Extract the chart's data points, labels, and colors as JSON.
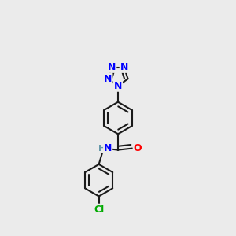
{
  "background_color": "#ebebeb",
  "bond_color": "#1a1a1a",
  "bond_width": 1.5,
  "atom_colors": {
    "N": "#0000ff",
    "O": "#ff0000",
    "Cl": "#00aa00",
    "H": "#6699aa",
    "C": "#1a1a1a"
  },
  "font_size": 9
}
